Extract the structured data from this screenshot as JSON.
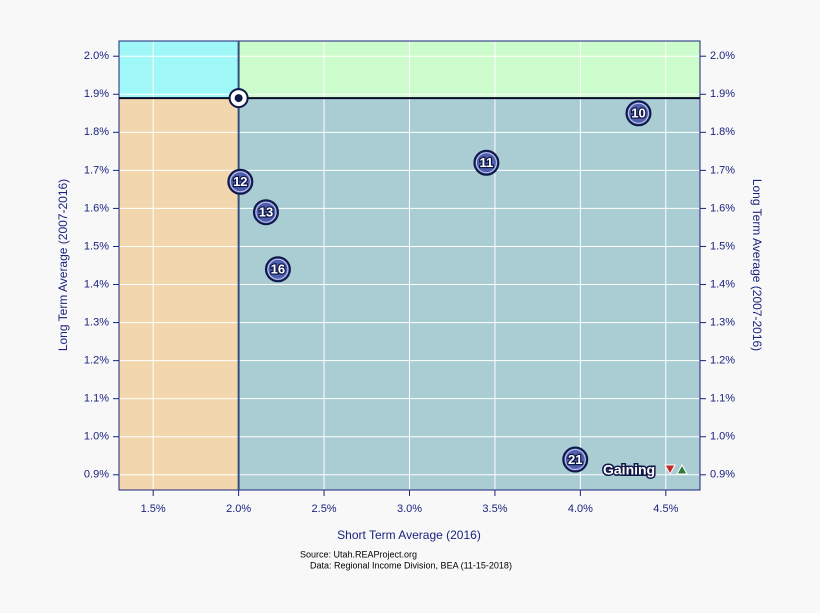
{
  "chart_data": {
    "type": "scatter",
    "xlabel": "Short Term Average (2016)",
    "ylabel": "Long Term Average (2007-2016)",
    "y2label": "Long Term Average (2007-2016)",
    "xlim": [
      1.3,
      4.7
    ],
    "ylim": [
      0.86,
      2.04
    ],
    "y2lim": [
      0.86,
      2.04
    ],
    "xticks": [
      {
        "value": 1.5,
        "label": "1.5%"
      },
      {
        "value": 2.0,
        "label": "2.0%"
      },
      {
        "value": 2.5,
        "label": "2.5%"
      },
      {
        "value": 3.0,
        "label": "3.0%"
      },
      {
        "value": 3.5,
        "label": "3.5%"
      },
      {
        "value": 4.0,
        "label": "4.0%"
      },
      {
        "value": 4.5,
        "label": "4.5%"
      }
    ],
    "yticks": [
      {
        "value": 0.9,
        "label": "0.9%"
      },
      {
        "value": 1.0,
        "label": "1.0%"
      },
      {
        "value": 1.1,
        "label": "1.1%"
      },
      {
        "value": 1.2,
        "label": "1.2%"
      },
      {
        "value": 1.3,
        "label": "1.3%"
      },
      {
        "value": 1.4,
        "label": "1.4%"
      },
      {
        "value": 1.5,
        "label": "1.5%"
      },
      {
        "value": 1.6,
        "label": "1.6%"
      },
      {
        "value": 1.7,
        "label": "1.7%"
      },
      {
        "value": 1.8,
        "label": "1.8%"
      },
      {
        "value": 1.9,
        "label": "1.9%"
      },
      {
        "value": 2.0,
        "label": "2.0%"
      }
    ],
    "y2ticks": [
      {
        "value": 0.9,
        "label": "0.9%"
      },
      {
        "value": 1.0,
        "label": "1.0%"
      },
      {
        "value": 1.1,
        "label": "1.1%"
      },
      {
        "value": 1.2,
        "label": "1.2%"
      },
      {
        "value": 1.3,
        "label": "1.3%"
      },
      {
        "value": 1.4,
        "label": "1.4%"
      },
      {
        "value": 1.5,
        "label": "1.5%"
      },
      {
        "value": 1.6,
        "label": "1.6%"
      },
      {
        "value": 1.7,
        "label": "1.7%"
      },
      {
        "value": 1.8,
        "label": "1.8%"
      },
      {
        "value": 1.9,
        "label": "1.9%"
      },
      {
        "value": 2.0,
        "label": "2.0%"
      }
    ],
    "grid": true,
    "reference": {
      "x": 2.0,
      "y": 1.89
    },
    "quadrant_colors": [
      "#a0f7f7",
      "#ccfccc",
      "#f2d7ae",
      "#a9cdd3"
    ],
    "color": "#4f5fae",
    "labels": [
      "10",
      "11",
      "12",
      "13",
      "16",
      "21"
    ],
    "x": [
      4.34,
      3.45,
      2.01,
      2.16,
      2.23,
      3.97
    ],
    "y": [
      1.85,
      1.72,
      1.67,
      1.59,
      1.44,
      0.94
    ],
    "legend": "Gaining",
    "notes": [
      "Source: Utah.REAProject.org",
      "Data: Regional Income Division, BEA (11-15-2018)"
    ]
  }
}
